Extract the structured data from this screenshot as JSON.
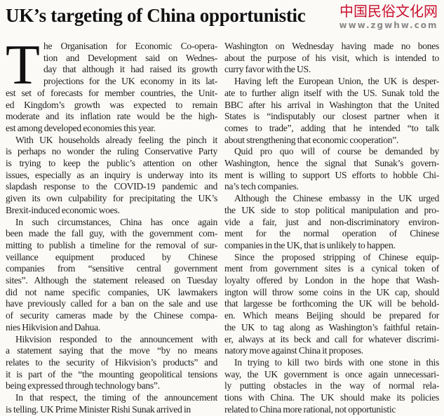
{
  "headline": "UK’s targeting of China opportunistic",
  "drop_cap": "T",
  "left_column": [
    [
      "he Organisation for Economic Co-opera-",
      "tion and Development said on Wednes-",
      "day that although it had raised its growth",
      "projections for the UK economy in its lat-",
      "est set of forecasts for member countries, the Unit-",
      "ed Kingdom’s growth was expected to remain",
      "moderate and its inflation rate would be the high-",
      "est among developed economies this year."
    ],
    [
      "With UK households already feeling the pinch it",
      "is perhaps no wonder the ruling Conservative Party",
      "is trying to keep the public’s attention on other",
      "issues, especially as an inquiry is underway into its",
      "slapdash response to the COVID-19 pandemic and",
      "given its own culpability for precipitating the UK’s",
      "Brexit-induced economic woes."
    ],
    [
      "In such circumstances, China has once again",
      "been made the fall guy, with the government com-",
      "mitting to publish a timeline for the removal of sur-",
      "veillance equipment produced by Chinese",
      "companies from “sensitive central government",
      "sites”. Although the statement released on Tuesday",
      "did not name specific companies, UK lawmakers",
      "have previously called for a ban on the sale and use",
      "of security cameras made by the Chinese compa-",
      "nies Hikvision and Dahua."
    ],
    [
      "Hikvision responded to the announcement with",
      "a statement saying that the move “by no means",
      "relates to the security of Hikvision’s products” and",
      "it is part of the “the mounting geopolitical tensions",
      "being expressed through technology bans”."
    ],
    [
      "In that respect, the timing of the announcement",
      "is telling. UK Prime Minister Rishi Sunak arrived in"
    ]
  ],
  "right_column": [
    [
      "Washington on Wednesday having made no bones",
      "about the purpose of his visit, which is intended to",
      "curry favor with the US."
    ],
    [
      "Having left the European Union, the UK is desper-",
      "ate to further align itself with the US. Sunak told the",
      "BBC after his arrival in Washington that the United",
      "States is “indisputably our closest partner when it",
      "comes to trade”, adding that he intended “to talk",
      "about strengthening that economic cooperation”."
    ],
    [
      "Quid pro quo will of course be demanded by",
      "Washington, hence the signal that Sunak’s govern-",
      "ment is willing to support US efforts to hobble Chi-",
      "na’s tech companies."
    ],
    [
      "Although the Chinese embassy in the UK urged",
      "the UK side to stop political manipulation and pro-",
      "vide a fair, just and non-discriminatory environ-",
      "ment for the normal operation of Chinese",
      "companies in the UK, that is unlikely to happen."
    ],
    [
      "Since the proposed stripping of Chinese equip-",
      "ment from government sites is a cynical token of",
      "loyalty offered by London in the hope that Wash-",
      "ington will throw some coins in the UK cap, should",
      "that largesse be forthcoming the UK will be behold-",
      "en. Which means Beijing should be prepared for",
      "the UK to tag along as Washington’s faithful retain-",
      "er, always at its beck and call for whatever discrimi-",
      "natory move against China it proposes."
    ],
    [
      "In trying to kill two birds with one stone in this",
      "way, the UK government is once again unnecessari-",
      "ly putting obstacles in the way of normal rela-",
      "tions with China. The UK should make its policies",
      "related to China more rational, not opportunistic"
    ]
  ],
  "watermark": {
    "chinese": "中国民俗文化网",
    "url": "www.zgwhw.com"
  }
}
